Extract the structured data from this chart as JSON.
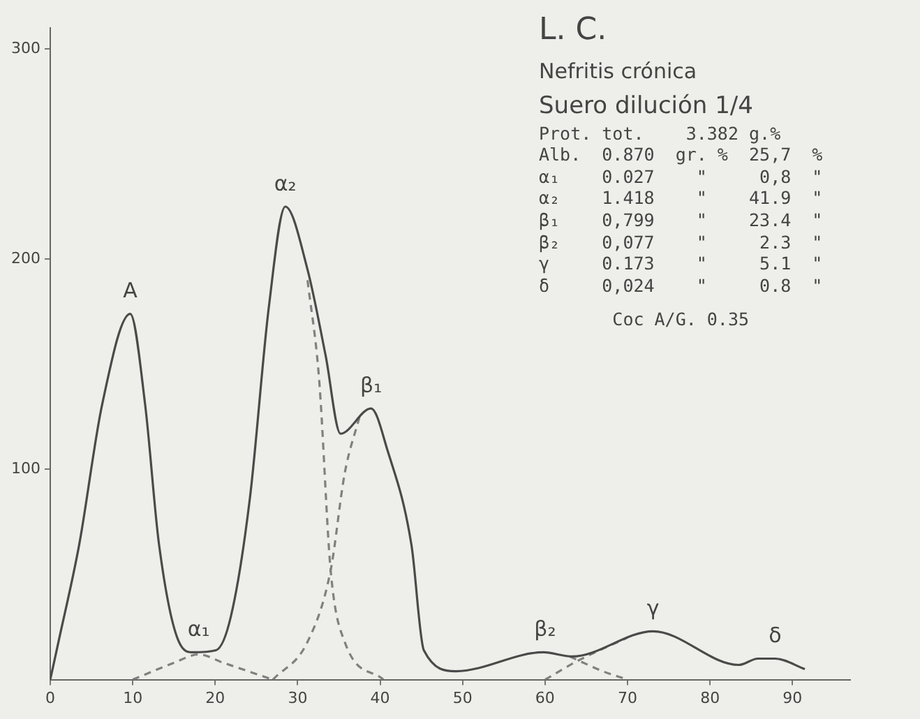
{
  "chart_data": {
    "type": "line",
    "title": "L. C.",
    "subtitle": "Nefritis crónica",
    "xlim": [
      0,
      97
    ],
    "xticks": [
      0,
      10,
      20,
      30,
      40,
      50,
      60,
      70,
      80,
      90
    ],
    "ylim": [
      0,
      310
    ],
    "yticks": [
      100,
      200,
      300
    ],
    "grid": false,
    "legend": false,
    "marker": "none",
    "series": [
      {
        "color": "#4a4a4a",
        "line_style": "solid",
        "x": [
          0,
          1,
          3.5,
          6.3,
          9.7,
          11.5,
          13.2,
          15.6,
          17.3,
          20.1,
          21.9,
          24.2,
          26.5,
          28.5,
          31.2,
          33.4,
          35.2,
          38.9,
          40.9,
          43.8,
          45.3,
          49.2,
          59.8,
          63.3,
          73.1,
          83.5,
          85.8,
          87.9,
          91.5
        ],
        "values": [
          0,
          18,
          64,
          131,
          174,
          131,
          64,
          18,
          13,
          14,
          30,
          86,
          177,
          225,
          195,
          154,
          117,
          129,
          109,
          64,
          14,
          4,
          13,
          11,
          23,
          7,
          10,
          10,
          5
        ]
      },
      {
        "color": "#808080",
        "line_style": "dashed",
        "x": [
          10,
          15,
          18,
          21,
          27
        ],
        "values": [
          0,
          8,
          12,
          8,
          0
        ]
      },
      {
        "color": "#808080",
        "line_style": "dashed",
        "x": [
          31.2,
          32.6,
          34,
          35.7,
          40.4
        ],
        "values": [
          190,
          143,
          52,
          18,
          0
        ]
      },
      {
        "color": "#808080",
        "line_style": "dashed",
        "x": [
          27,
          31.2,
          34,
          35.7,
          37.5
        ],
        "values": [
          0,
          18,
          52,
          98,
          125
        ]
      },
      {
        "color": "#808080",
        "line_style": "dashed",
        "x": [
          60,
          64,
          70
        ],
        "values": [
          0,
          9,
          20
        ]
      },
      {
        "color": "#808080",
        "line_style": "dashed",
        "x": [
          63,
          67,
          70
        ],
        "values": [
          11,
          4,
          0
        ]
      }
    ],
    "annotations": [
      {
        "text": "A",
        "x": 9.7,
        "y": 174
      },
      {
        "text": "α₁",
        "x": 18,
        "y": 13
      },
      {
        "text": "α₂",
        "x": 28.5,
        "y": 225
      },
      {
        "text": "β₁",
        "x": 38.9,
        "y": 129
      },
      {
        "text": "β₂",
        "x": 60,
        "y": 13
      },
      {
        "text": "γ",
        "x": 73.1,
        "y": 23
      },
      {
        "text": "δ",
        "x": 87.9,
        "y": 10
      },
      "Suero dilución 1/4",
      "Prot. tot.    3.382 g.%",
      "Alb.  0.870  gr. %  25,7  %",
      "α₁    0.027    \"     0,8  \"",
      "α₂    1.418    \"    41.9  \"",
      "β₁    0,799    \"    23.4  \"",
      "β₂    0,077    \"     2.3  \"",
      "γ     0.173    \"     5.1  \"",
      "δ     0,024    \"     0.8  \"",
      "       Coc A/G. 0.35"
    ]
  }
}
